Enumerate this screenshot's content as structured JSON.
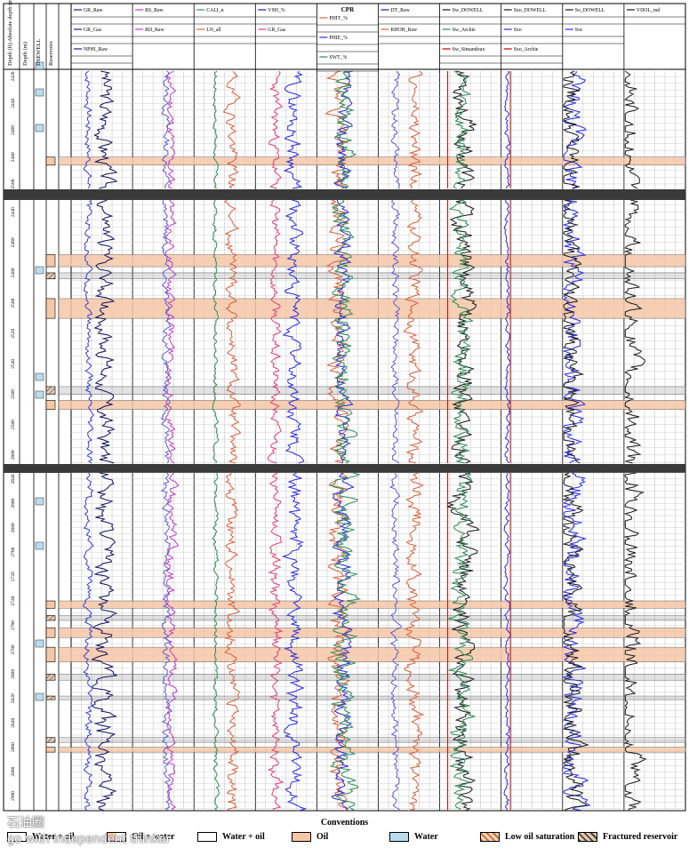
{
  "chart_data": {
    "type": "line",
    "title": "",
    "depth_sections": [
      {
        "ticks": [
          "2420",
          "2440",
          "2460",
          "2480",
          "2500"
        ],
        "d0": 2416,
        "d1": 2504
      },
      {
        "ticks": [
          "2440",
          "2460",
          "2480",
          "2500",
          "2520",
          "2540",
          "2560",
          "2580",
          "2600"
        ],
        "d0": 2432,
        "d1": 2606
      },
      {
        "ticks": [
          "2640",
          "2660",
          "2680",
          "2700",
          "2720",
          "2740",
          "2760",
          "2780",
          "2800",
          "2820",
          "2840",
          "2860",
          "2880",
          "2900"
        ],
        "d0": 2635,
        "d1": 2912
      }
    ],
    "left_columns": [
      {
        "label": "Depth (ft) Absolute depth (m)"
      },
      {
        "label": "Depth (m)"
      },
      {
        "label": "DSEWELL"
      },
      {
        "label": "Reservoirs"
      }
    ],
    "tracks": [
      {
        "curves": [
          {
            "name": "GR_Raw",
            "color": "#1a1a9c"
          },
          {
            "name": "GR_Gas",
            "color": "#1a1a9c"
          },
          {
            "name": "NPHI_Raw",
            "color": "#1a1a9c"
          }
        ],
        "series": [
          {
            "color": "#11115e",
            "base": 0.55,
            "amp": 0.12,
            "seed": 3
          },
          {
            "color": "#3b3bd8",
            "base": 0.28,
            "amp": 0.05,
            "seed": 7
          }
        ]
      },
      {
        "curves": [
          {
            "name": "RS_Raw",
            "color": "#c23ac2"
          },
          {
            "name": "RD_Raw",
            "color": "#c23ac2"
          }
        ],
        "series": [
          {
            "color": "#c23ac2",
            "base": 0.62,
            "amp": 0.06,
            "seed": 11
          },
          {
            "color": "#5b5bd8",
            "base": 0.55,
            "amp": 0.05,
            "seed": 13
          }
        ]
      },
      {
        "curves": [
          {
            "name": "CALI_n",
            "color": "#2e8b57"
          },
          {
            "name": "LN_all",
            "color": "#d9603b"
          }
        ],
        "series": [
          {
            "color": "#2e8b57",
            "base": 0.35,
            "amp": 0.03,
            "seed": 17
          },
          {
            "color": "#d9603b",
            "base": 0.62,
            "amp": 0.08,
            "seed": 19
          }
        ]
      },
      {
        "curves": [
          {
            "name": "VSH_%",
            "color": "#1a1a9c"
          },
          {
            "name": "GR_Gas",
            "color": "#e0407a"
          }
        ],
        "series": [
          {
            "color": "#e0407a",
            "base": 0.32,
            "amp": 0.07,
            "seed": 23
          },
          {
            "color": "#2a2ae0",
            "base": 0.62,
            "amp": 0.1,
            "seed": 29
          }
        ]
      },
      {
        "curves": [
          {
            "name": "PHIT_%",
            "color": "#d9603b"
          },
          {
            "name": "PHIE_%",
            "color": "#2a2ae0"
          },
          {
            "name": "SWT_%",
            "color": "#2e8b57"
          }
        ],
        "header": "CPR",
        "series": [
          {
            "color": "#d9603b",
            "base": 0.35,
            "amp": 0.12,
            "seed": 31
          },
          {
            "color": "#2a2ae0",
            "base": 0.42,
            "amp": 0.1,
            "seed": 37
          },
          {
            "color": "#2e8b57",
            "base": 0.45,
            "amp": 0.14,
            "seed": 41
          }
        ]
      },
      {
        "curves": [
          {
            "name": "DT_Raw",
            "color": "#1a1a9c"
          },
          {
            "name": "RHOB_Raw",
            "color": "#d9603b"
          }
        ],
        "series": [
          {
            "color": "#5b5bd8",
            "base": 0.28,
            "amp": 0.05,
            "seed": 43
          },
          {
            "color": "#d9603b",
            "base": 0.58,
            "amp": 0.09,
            "seed": 47
          }
        ]
      },
      {
        "curves": [
          {
            "name": "Sw_DOWELL",
            "color": "#1a1a1a"
          },
          {
            "name": "Sw_Archie",
            "color": "#2e8b57"
          },
          {
            "name": "Sw_Simandoux",
            "color": "#cc0000"
          }
        ],
        "series": [
          {
            "color": "#1a1a1a",
            "base": 0.4,
            "amp": 0.14,
            "seed": 53
          },
          {
            "color": "#2e8b57",
            "base": 0.35,
            "amp": 0.12,
            "seed": 59
          },
          {
            "color": "#cc0000",
            "base": 0.13,
            "amp": 0.0,
            "seed": 61
          }
        ]
      },
      {
        "curves": [
          {
            "name": "Sxo_DOWELL",
            "color": "#1a1a1a"
          },
          {
            "name": "Sxo",
            "color": "#2a2ae0"
          },
          {
            "name": "Sxo_Archie",
            "color": "#cc0000"
          }
        ],
        "series": [
          {
            "color": "#2a2ae0",
            "base": 0.1,
            "amp": 0.03,
            "seed": 67
          },
          {
            "color": "#cc0000",
            "base": 0.15,
            "amp": 0.0,
            "seed": 71
          }
        ]
      },
      {
        "curves": [
          {
            "name": "So_DOWELL",
            "color": "#1a1a1a"
          },
          {
            "name": "Soc",
            "color": "#2a2ae0"
          }
        ],
        "series": [
          {
            "color": "#2a2ae0",
            "base": 0.15,
            "amp": 0.15,
            "seed": 73
          },
          {
            "color": "#1a1a1a",
            "base": 0.12,
            "amp": 0.14,
            "seed": 79
          }
        ]
      },
      {
        "curves": [
          {
            "name": "VDOL_md",
            "color": "#1a1a1a"
          }
        ],
        "series": [
          {
            "color": "#1a1a1a",
            "base": 0.1,
            "amp": 0.14,
            "seed": 83
          }
        ]
      }
    ],
    "zones": [
      {
        "section": 0,
        "d0": 2480,
        "d1": 2486,
        "kind": "oil"
      },
      {
        "section": 1,
        "d0": 2468,
        "d1": 2476,
        "kind": "oil"
      },
      {
        "section": 1,
        "d0": 2480,
        "d1": 2484,
        "kind": "fract"
      },
      {
        "section": 1,
        "d0": 2497,
        "d1": 2510,
        "kind": "oil"
      },
      {
        "section": 1,
        "d0": 2555,
        "d1": 2560,
        "kind": "fract"
      },
      {
        "section": 1,
        "d0": 2564,
        "d1": 2570,
        "kind": "oil"
      },
      {
        "section": 2,
        "d0": 2740,
        "d1": 2746,
        "kind": "oil"
      },
      {
        "section": 2,
        "d0": 2752,
        "d1": 2756,
        "kind": "fract"
      },
      {
        "section": 2,
        "d0": 2762,
        "d1": 2770,
        "kind": "oil"
      },
      {
        "section": 2,
        "d0": 2778,
        "d1": 2790,
        "kind": "oil"
      },
      {
        "section": 2,
        "d0": 2800,
        "d1": 2805,
        "kind": "fract"
      },
      {
        "section": 2,
        "d0": 2818,
        "d1": 2821,
        "kind": "fract"
      },
      {
        "section": 2,
        "d0": 2852,
        "d1": 2856,
        "kind": "fract"
      },
      {
        "section": 2,
        "d0": 2860,
        "d1": 2864,
        "kind": "oil"
      }
    ],
    "legend": {
      "title": "Conventions",
      "items": [
        {
          "label": "Water + oil",
          "kind": "waterplus"
        },
        {
          "label": "Oil + water",
          "kind": "oilwater"
        },
        {
          "label": "Water + oil",
          "kind": "wateroil"
        },
        {
          "label": "Oil",
          "kind": "oil"
        },
        {
          "label": "Water",
          "kind": "water"
        },
        {
          "label": "Low oil saturation",
          "kind": "low"
        },
        {
          "label": "Fractured reservoir",
          "kind": "fract"
        }
      ]
    },
    "colors": {
      "oil": "#f5c7a7",
      "water": "#b9dcf0",
      "grid": "#bfbfbf",
      "separator": "#3a3a3a"
    }
  },
  "watermark": {
    "line1": "石油圈",
    "line2": "go with independent thinker"
  }
}
